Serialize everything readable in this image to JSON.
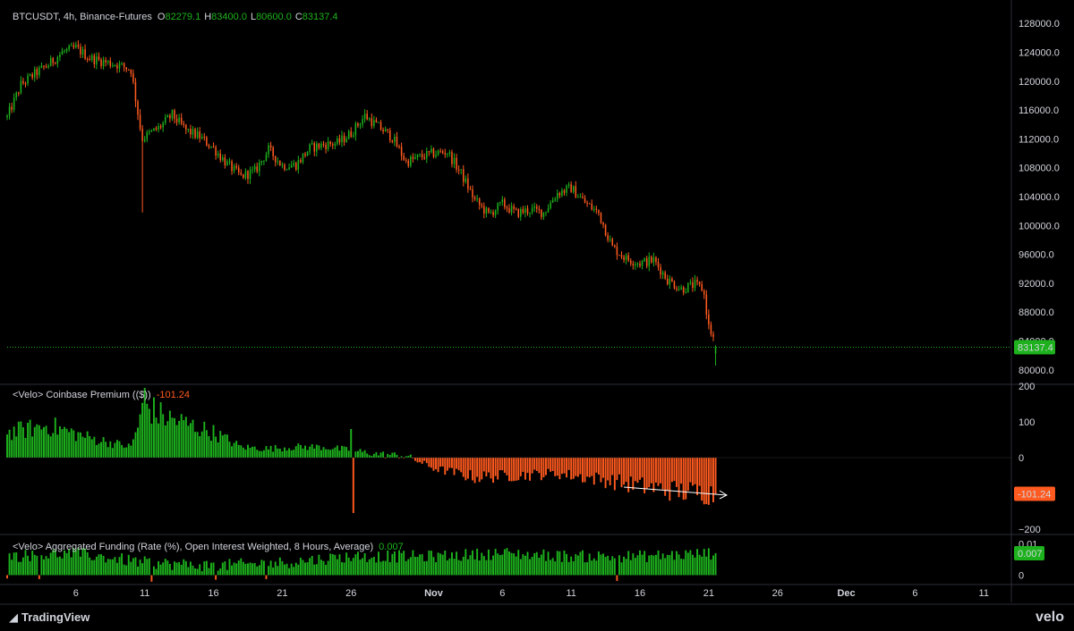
{
  "header": {
    "symbol": "BTCUSDT, 4h, Binance-Futures",
    "o_label": "O",
    "o_value": "82279.1",
    "h_label": "H",
    "h_value": "83400.0",
    "l_label": "L",
    "l_value": "80600.0",
    "c_label": "C",
    "c_value": "83137.4"
  },
  "colors": {
    "up": "#1db21d",
    "down": "#ff5a1f",
    "text": "#d1d4dc",
    "grid": "#2a2e39",
    "bg": "#000000"
  },
  "price_pane": {
    "last_price_label": "83137.4",
    "last_price": 83137.4,
    "ylim": [
      78000,
      130500
    ],
    "tick_values": [
      80000,
      84000,
      88000,
      92000,
      96000,
      100000,
      104000,
      108000,
      112000,
      116000,
      120000,
      124000,
      128000
    ],
    "tick_labels": [
      "80000.0",
      "84000.0",
      "88000.0",
      "92000.0",
      "96000.0",
      "100000.0",
      "104000.0",
      "108000.0",
      "112000.0",
      "116000.0",
      "120000.0",
      "124000.0",
      "128000.0"
    ]
  },
  "premium_pane": {
    "title": "<Velo> Coinbase Premium (($))",
    "last_value_label": "-101.24",
    "ylim": [
      -215,
      205
    ],
    "tick_values": [
      200,
      100,
      0,
      -100,
      -200
    ],
    "tick_labels": [
      "200",
      "100",
      "0",
      "−100",
      "−200"
    ]
  },
  "funding_pane": {
    "title": "<Velo> Aggregated Funding (Rate (%), Open Interest Weighted, 8 Hours, Average)",
    "last_value_label": "0.007",
    "ylim": [
      -0.003,
      0.013
    ],
    "tick_values": [
      0.01,
      0
    ],
    "tick_labels": [
      "0.01",
      "0"
    ]
  },
  "time_axis": {
    "labels": [
      {
        "text": "6",
        "date": "2025-10-06",
        "bold": false
      },
      {
        "text": "11",
        "date": "2025-10-11",
        "bold": false
      },
      {
        "text": "16",
        "date": "2025-10-16",
        "bold": false
      },
      {
        "text": "21",
        "date": "2025-10-21",
        "bold": false
      },
      {
        "text": "26",
        "date": "2025-10-26",
        "bold": false
      },
      {
        "text": "Nov",
        "date": "2025-11-01",
        "bold": true
      },
      {
        "text": "6",
        "date": "2025-11-06",
        "bold": false
      },
      {
        "text": "11",
        "date": "2025-11-11",
        "bold": false
      },
      {
        "text": "16",
        "date": "2025-11-16",
        "bold": false
      },
      {
        "text": "21",
        "date": "2025-11-21",
        "bold": false
      },
      {
        "text": "26",
        "date": "2025-11-26",
        "bold": false
      },
      {
        "text": "Dec",
        "date": "2025-12-01",
        "bold": true
      },
      {
        "text": "6",
        "date": "2025-12-06",
        "bold": false
      },
      {
        "text": "11",
        "date": "2025-12-11",
        "bold": false
      }
    ]
  },
  "branding": {
    "tradingview": "TradingView",
    "velo": "velo"
  },
  "chart_data": [
    {
      "type": "candlestick",
      "title": "BTCUSDT, 4h, Binance-Futures",
      "interval": "4h",
      "x_range": [
        "2025-10-01",
        "2025-12-13"
      ],
      "data_range": [
        "2025-10-01",
        "2025-11-22"
      ],
      "ylim": [
        78000,
        130500
      ],
      "anchor_points": [
        {
          "date": "2025-10-01",
          "close": 115000
        },
        {
          "date": "2025-10-02",
          "close": 119500
        },
        {
          "date": "2025-10-03",
          "close": 121000
        },
        {
          "date": "2025-10-04",
          "close": 122300
        },
        {
          "date": "2025-10-05",
          "close": 124000
        },
        {
          "date": "2025-10-06",
          "close": 124600
        },
        {
          "date": "2025-10-07",
          "close": 123200
        },
        {
          "date": "2025-10-08",
          "close": 122700
        },
        {
          "date": "2025-10-09",
          "close": 122300
        },
        {
          "date": "2025-10-10",
          "close": 121600
        },
        {
          "date": "2025-10-10.8",
          "close": 112000
        },
        {
          "date": "2025-10-11",
          "close": 112300
        },
        {
          "date": "2025-10-12",
          "close": 113500
        },
        {
          "date": "2025-10-13",
          "close": 115300
        },
        {
          "date": "2025-10-14",
          "close": 113200
        },
        {
          "date": "2025-10-15",
          "close": 112300
        },
        {
          "date": "2025-10-16",
          "close": 110700
        },
        {
          "date": "2025-10-17",
          "close": 108500
        },
        {
          "date": "2025-10-18",
          "close": 106800
        },
        {
          "date": "2025-10-19",
          "close": 107500
        },
        {
          "date": "2025-10-20",
          "close": 110500
        },
        {
          "date": "2025-10-21",
          "close": 108300
        },
        {
          "date": "2025-10-22",
          "close": 108400
        },
        {
          "date": "2025-10-23",
          "close": 110700
        },
        {
          "date": "2025-10-24",
          "close": 111200
        },
        {
          "date": "2025-10-25",
          "close": 111400
        },
        {
          "date": "2025-10-26",
          "close": 112800
        },
        {
          "date": "2025-10-27",
          "close": 115200
        },
        {
          "date": "2025-10-28",
          "close": 113700
        },
        {
          "date": "2025-10-29",
          "close": 112200
        },
        {
          "date": "2025-10-30",
          "close": 108800
        },
        {
          "date": "2025-10-31",
          "close": 109500
        },
        {
          "date": "2025-11-01",
          "close": 110000
        },
        {
          "date": "2025-11-02",
          "close": 110200
        },
        {
          "date": "2025-11-03",
          "close": 107200
        },
        {
          "date": "2025-11-04",
          "close": 103500
        },
        {
          "date": "2025-11-05",
          "close": 101500
        },
        {
          "date": "2025-11-06",
          "close": 103000
        },
        {
          "date": "2025-11-07",
          "close": 101700
        },
        {
          "date": "2025-11-08",
          "close": 102200
        },
        {
          "date": "2025-11-09",
          "close": 101800
        },
        {
          "date": "2025-11-10",
          "close": 104500
        },
        {
          "date": "2025-11-11",
          "close": 105200
        },
        {
          "date": "2025-11-12",
          "close": 103200
        },
        {
          "date": "2025-11-13",
          "close": 101700
        },
        {
          "date": "2025-11-14",
          "close": 97000
        },
        {
          "date": "2025-11-15",
          "close": 95400
        },
        {
          "date": "2025-11-16",
          "close": 94800
        },
        {
          "date": "2025-11-17",
          "close": 95200
        },
        {
          "date": "2025-11-18",
          "close": 92500
        },
        {
          "date": "2025-11-19",
          "close": 91200
        },
        {
          "date": "2025-11-20",
          "close": 91800
        },
        {
          "date": "2025-11-20.6",
          "close": 91200
        },
        {
          "date": "2025-11-21",
          "close": 86000
        },
        {
          "date": "2025-11-21.6",
          "close": 83137.4
        }
      ],
      "notable_wicks": [
        {
          "date": "2025-10-10.8",
          "low": 101800
        },
        {
          "date": "2025-11-21.5",
          "low": 80600
        }
      ],
      "last": {
        "open": 82279.1,
        "high": 83400.0,
        "low": 80600.0,
        "close": 83137.4
      }
    },
    {
      "type": "bar",
      "title": "<Velo> Coinbase Premium (($))",
      "ylim": [
        -215,
        205
      ],
      "anchor_points": [
        {
          "date": "2025-10-01",
          "value": 70
        },
        {
          "date": "2025-10-04",
          "value": 90
        },
        {
          "date": "2025-10-07",
          "value": 55
        },
        {
          "date": "2025-10-10",
          "value": 30
        },
        {
          "date": "2025-10-11",
          "value": 150
        },
        {
          "date": "2025-10-12",
          "value": 120
        },
        {
          "date": "2025-10-14",
          "value": 95
        },
        {
          "date": "2025-10-16",
          "value": 70
        },
        {
          "date": "2025-10-18",
          "value": 30
        },
        {
          "date": "2025-10-20",
          "value": 25
        },
        {
          "date": "2025-10-22",
          "value": 30
        },
        {
          "date": "2025-10-24",
          "value": 30
        },
        {
          "date": "2025-10-26",
          "value": 20
        },
        {
          "date": "2025-10-28",
          "value": 10
        },
        {
          "date": "2025-10-30",
          "value": 5
        },
        {
          "date": "2025-11-01",
          "value": -30
        },
        {
          "date": "2025-11-04",
          "value": -55
        },
        {
          "date": "2025-11-07",
          "value": -50
        },
        {
          "date": "2025-11-10",
          "value": -45
        },
        {
          "date": "2025-11-13",
          "value": -60
        },
        {
          "date": "2025-11-16",
          "value": -80
        },
        {
          "date": "2025-11-19",
          "value": -95
        },
        {
          "date": "2025-11-21.6",
          "value": -101.24
        }
      ],
      "notable_bars": [
        {
          "date": "2025-10-11",
          "value": 195
        },
        {
          "date": "2025-10-26",
          "value": 80
        },
        {
          "date": "2025-10-26.2",
          "value": -155
        }
      ],
      "last_value": -101.24
    },
    {
      "type": "bar",
      "title": "<Velo> Aggregated Funding (Rate (%), Open Interest Weighted, 8 Hours, Average)",
      "ylim": [
        -0.003,
        0.013
      ],
      "anchor_points": [
        {
          "date": "2025-10-01",
          "value": 0.006
        },
        {
          "date": "2025-10-06",
          "value": 0.007
        },
        {
          "date": "2025-10-11",
          "value": 0.004
        },
        {
          "date": "2025-10-16",
          "value": 0.003
        },
        {
          "date": "2025-10-21",
          "value": 0.004
        },
        {
          "date": "2025-10-26",
          "value": 0.006
        },
        {
          "date": "2025-11-01",
          "value": 0.006
        },
        {
          "date": "2025-11-06",
          "value": 0.007
        },
        {
          "date": "2025-11-11",
          "value": 0.006
        },
        {
          "date": "2025-11-16",
          "value": 0.006
        },
        {
          "date": "2025-11-21.6",
          "value": 0.007
        }
      ],
      "last_value": 0.007
    }
  ]
}
